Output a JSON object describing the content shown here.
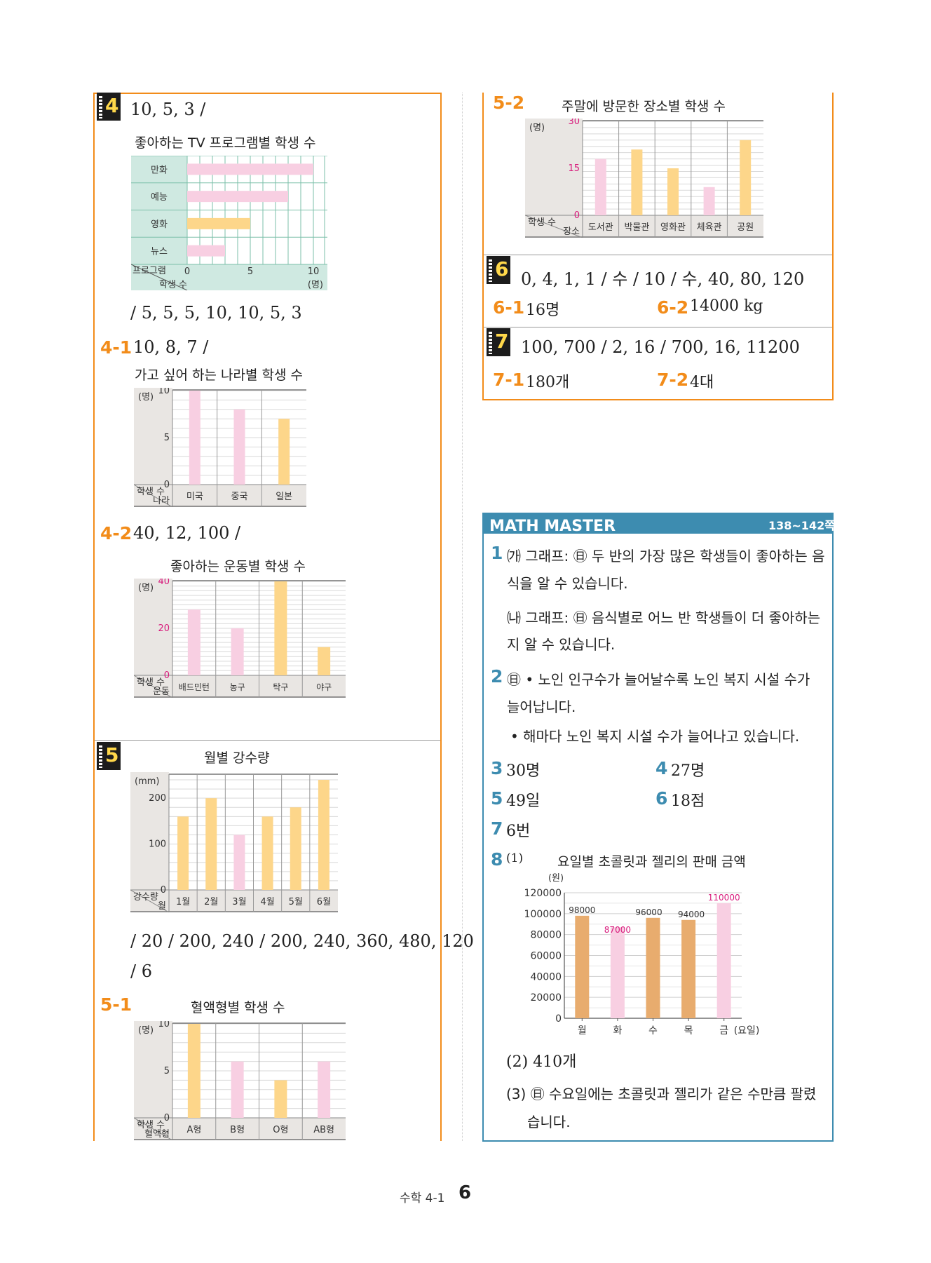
{
  "p4": {
    "badge": "4",
    "answer1": "10, 5, 3 /",
    "chart_title": "좋아하는 TV 프로그램별 학생 수",
    "answer2": "/ 5, 5, 5, 10, 10, 5, 3"
  },
  "p4_1": {
    "label": "4-1",
    "answer": "10, 8, 7 /",
    "chart_title": "가고 싶어 하는 나라별 학생 수"
  },
  "p4_2": {
    "label": "4-2",
    "answer": "40, 12, 100 /",
    "chart_title": "좋아하는 운동별 학생 수"
  },
  "p5": {
    "badge": "5",
    "chart_title": "월별 강수량",
    "answer1": "/ 20 / 200, 240 / 200, 240, 360, 480, 120",
    "answer2": "/ 6"
  },
  "p5_1": {
    "label": "5-1",
    "chart_title": "혈액형별 학생 수"
  },
  "p5_2": {
    "label": "5-2",
    "chart_title": "주말에 방문한 장소별 학생 수"
  },
  "p6": {
    "badge": "6",
    "answer": "0, 4, 1, 1 / 수 / 10 / 수, 40, 80, 120",
    "sub1_label": "6-1",
    "sub1": "16명",
    "sub2_label": "6-2",
    "sub2": "14000 kg"
  },
  "p7": {
    "badge": "7",
    "answer": "100, 700 / 2, 16 / 700, 16, 11200",
    "sub1_label": "7-1",
    "sub1": "180개",
    "sub2_label": "7-2",
    "sub2": "4대"
  },
  "math_master": {
    "title": "MATH MASTER",
    "pages": "138~142쪽",
    "q1_num": "1",
    "q1_a_line1": "㈎ 그래프: ㊐ 두 반의 가장 많은 학생들이 좋아하는 음",
    "q1_a_line2": "식을 알 수 있습니다.",
    "q1_b_line1": "㈏ 그래프: ㊐ 음식별로 어느 반 학생들이 더 좋아하는",
    "q1_b_line2": "지 알 수 있습니다.",
    "q2_num": "2",
    "q2_line1": "㊐ • 노인 인구수가 늘어날수록 노인 복지 시설 수가",
    "q2_line2": "늘어납니다.",
    "q2_line3": "• 해마다 노인 복지 시설 수가 늘어나고 있습니다.",
    "q3_num": "3",
    "q3": "30명",
    "q4_num": "4",
    "q4": "27명",
    "q5_num": "5",
    "q5": "49일",
    "q6_num": "6",
    "q6": "18점",
    "q7_num": "7",
    "q7": "6번",
    "q8_num": "8",
    "q8_part1": "(1)",
    "q8_chart_title": "요일별 초콜릿과 젤리의 판매 금액",
    "q8_part2": "(2) 410개",
    "q8_part3_line1": "(3) ㊐ 수요일에는 초콜릿과 젤리가 같은 수만큼 팔렸",
    "q8_part3_line2": "습니다."
  },
  "footer": {
    "subject": "수학 4-1",
    "page": "6"
  },
  "colors": {
    "orange": "#f28c1a",
    "blue": "#3d8cb0",
    "pink_bar": "#f8cfe2",
    "yellow_bar": "#fdd68a",
    "brown_bar": "#e8ac6e"
  },
  "chart_data": [
    {
      "type": "bar",
      "orientation": "horizontal",
      "title": "좋아하는 TV 프로그램별 학생 수",
      "xlabel": "학생 수",
      "ylabel": "프로그램",
      "unit": "(명)",
      "categories": [
        "만화",
        "예능",
        "영화",
        "뉴스"
      ],
      "values": [
        10,
        8,
        5,
        3
      ],
      "ticks": [
        "0",
        "5",
        "10"
      ],
      "xlim": [
        0,
        10
      ]
    },
    {
      "type": "bar",
      "title": "가고 싶어 하는 나라별 학생 수",
      "xlabel": "나라",
      "ylabel": "학생 수",
      "unit": "(명)",
      "categories": [
        "미국",
        "중국",
        "일본"
      ],
      "values": [
        10,
        8,
        7
      ],
      "ticks": [
        "0",
        "5",
        "10"
      ],
      "ylim": [
        0,
        10
      ]
    },
    {
      "type": "bar",
      "title": "좋아하는 운동별 학생 수",
      "xlabel": "운동",
      "ylabel": "학생 수",
      "unit": "(명)",
      "categories": [
        "배드민턴",
        "농구",
        "탁구",
        "야구"
      ],
      "values": [
        28,
        20,
        40,
        12
      ],
      "ticks": [
        "0",
        "20",
        "40"
      ],
      "ylim": [
        0,
        40
      ]
    },
    {
      "type": "bar",
      "title": "월별 강수량",
      "xlabel": "월",
      "ylabel": "강수량",
      "unit": "(mm)",
      "categories": [
        "1월",
        "2월",
        "3월",
        "4월",
        "5월",
        "6월"
      ],
      "values": [
        160,
        200,
        120,
        160,
        180,
        240
      ],
      "ticks": [
        "0",
        "100",
        "200"
      ],
      "ylim": [
        0,
        240
      ]
    },
    {
      "type": "bar",
      "title": "혈액형별 학생 수",
      "xlabel": "혈액형",
      "ylabel": "학생 수",
      "unit": "(명)",
      "categories": [
        "A형",
        "B형",
        "O형",
        "AB형"
      ],
      "values": [
        10,
        6,
        4,
        6
      ],
      "ticks": [
        "0",
        "5",
        "10"
      ],
      "ylim": [
        0,
        10
      ]
    },
    {
      "type": "bar",
      "title": "주말에 방문한 장소별 학생 수",
      "xlabel": "장소",
      "ylabel": "학생 수",
      "unit": "(명)",
      "categories": [
        "도서관",
        "박물관",
        "영화관",
        "체육관",
        "공원"
      ],
      "values": [
        18,
        21,
        15,
        9,
        24
      ],
      "ticks": [
        "0",
        "15",
        "30"
      ],
      "ylim": [
        0,
        30
      ]
    },
    {
      "type": "bar",
      "title": "요일별 초콜릿과 젤리의 판매 금액",
      "xlabel": "(요일)",
      "unit": "(원)",
      "categories": [
        "월",
        "화",
        "수",
        "목",
        "금"
      ],
      "values": [
        98000,
        87000,
        96000,
        94000,
        110000
      ],
      "data_labels": [
        "98000",
        "87000",
        "96000",
        "94000",
        "110000"
      ],
      "ticks": [
        "0",
        "20000",
        "40000",
        "60000",
        "80000",
        "100000",
        "120000"
      ],
      "ylim": [
        0,
        120000
      ]
    }
  ]
}
